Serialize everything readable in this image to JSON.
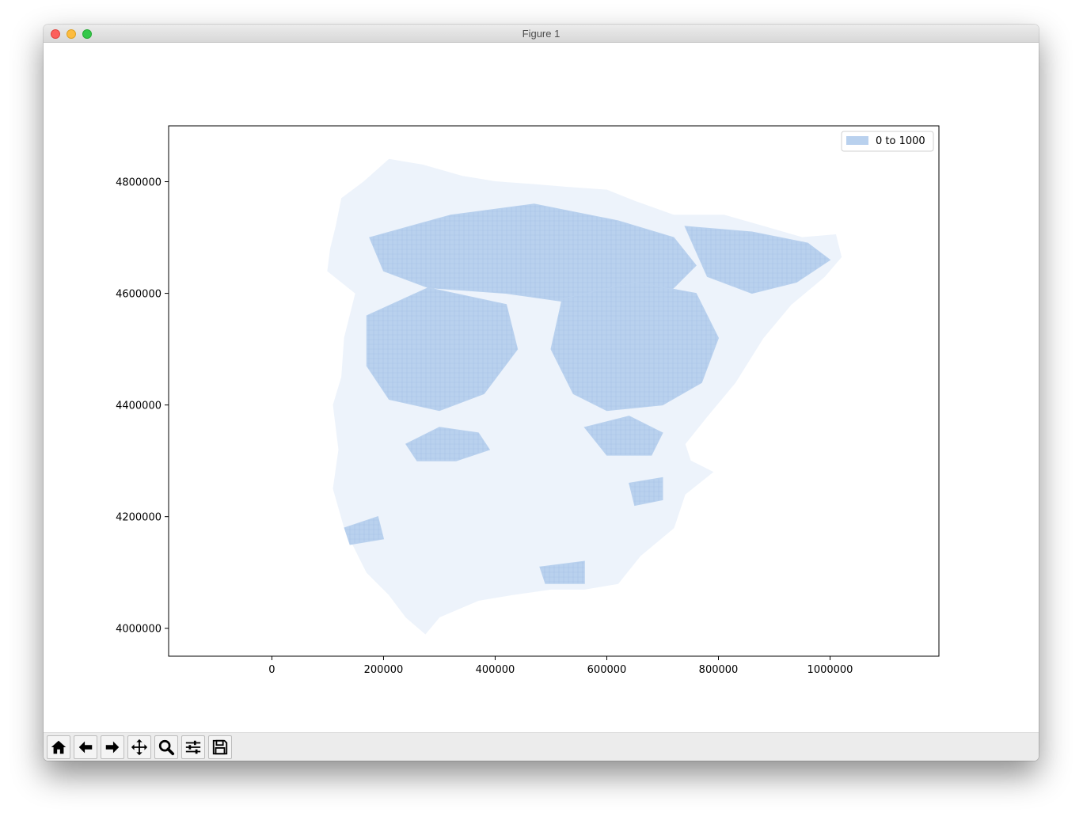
{
  "window": {
    "title": "Figure 1"
  },
  "toolbar": {
    "buttons": [
      {
        "name": "home-icon",
        "tooltip": "Home"
      },
      {
        "name": "back-arrow-icon",
        "tooltip": "Back"
      },
      {
        "name": "forward-arrow-icon",
        "tooltip": "Forward"
      },
      {
        "name": "pan-icon",
        "tooltip": "Pan"
      },
      {
        "name": "zoom-icon",
        "tooltip": "Zoom"
      },
      {
        "name": "configure-subplots-icon",
        "tooltip": "Subplots"
      },
      {
        "name": "save-icon",
        "tooltip": "Save"
      }
    ]
  },
  "chart_data": {
    "type": "map",
    "title": "",
    "xlabel": "",
    "ylabel": "",
    "xlim": [
      -185000,
      1195000
    ],
    "ylim": [
      3950000,
      4900000
    ],
    "xticks": [
      0,
      200000,
      400000,
      600000,
      800000,
      1000000
    ],
    "xtick_labels": [
      "0",
      "200000",
      "400000",
      "600000",
      "800000",
      "1000000"
    ],
    "yticks": [
      4000000,
      4200000,
      4400000,
      4600000,
      4800000
    ],
    "ytick_labels": [
      "4000000",
      "4200000",
      "4400000",
      "4600000",
      "4800000"
    ],
    "grid": false,
    "legend": {
      "placement": "upper right",
      "entries": [
        {
          "label": "0 to 1000",
          "color": "#b9d1ee"
        }
      ]
    },
    "colors": {
      "background_region": "#edf3fb",
      "highlighted_region": "#b9d1ee"
    },
    "outline": [
      [
        115000,
        4720000
      ],
      [
        125000,
        4770000
      ],
      [
        165000,
        4800000
      ],
      [
        210000,
        4840000
      ],
      [
        270000,
        4830000
      ],
      [
        340000,
        4810000
      ],
      [
        400000,
        4800000
      ],
      [
        470000,
        4795000
      ],
      [
        530000,
        4790000
      ],
      [
        600000,
        4785000
      ],
      [
        650000,
        4765000
      ],
      [
        720000,
        4740000
      ],
      [
        810000,
        4740000
      ],
      [
        880000,
        4720000
      ],
      [
        950000,
        4700000
      ],
      [
        1010000,
        4705000
      ],
      [
        1020000,
        4665000
      ],
      [
        990000,
        4630000
      ],
      [
        930000,
        4580000
      ],
      [
        880000,
        4520000
      ],
      [
        830000,
        4440000
      ],
      [
        780000,
        4380000
      ],
      [
        740000,
        4330000
      ],
      [
        750000,
        4300000
      ],
      [
        790000,
        4280000
      ],
      [
        740000,
        4240000
      ],
      [
        720000,
        4180000
      ],
      [
        660000,
        4130000
      ],
      [
        620000,
        4080000
      ],
      [
        560000,
        4070000
      ],
      [
        500000,
        4070000
      ],
      [
        430000,
        4060000
      ],
      [
        370000,
        4050000
      ],
      [
        300000,
        4020000
      ],
      [
        275000,
        3990000
      ],
      [
        240000,
        4020000
      ],
      [
        210000,
        4060000
      ],
      [
        170000,
        4100000
      ],
      [
        150000,
        4140000
      ],
      [
        130000,
        4180000
      ],
      [
        110000,
        4250000
      ],
      [
        120000,
        4320000
      ],
      [
        110000,
        4400000
      ],
      [
        125000,
        4450000
      ],
      [
        130000,
        4520000
      ],
      [
        150000,
        4600000
      ],
      [
        100000,
        4640000
      ],
      [
        105000,
        4680000
      ]
    ],
    "highlight_regions": [
      [
        [
          175000,
          4700000
        ],
        [
          320000,
          4740000
        ],
        [
          470000,
          4760000
        ],
        [
          620000,
          4730000
        ],
        [
          720000,
          4700000
        ],
        [
          760000,
          4650000
        ],
        [
          700000,
          4590000
        ],
        [
          560000,
          4580000
        ],
        [
          420000,
          4600000
        ],
        [
          280000,
          4610000
        ],
        [
          200000,
          4640000
        ]
      ],
      [
        [
          170000,
          4560000
        ],
        [
          280000,
          4610000
        ],
        [
          420000,
          4580000
        ],
        [
          440000,
          4500000
        ],
        [
          380000,
          4420000
        ],
        [
          300000,
          4390000
        ],
        [
          210000,
          4410000
        ],
        [
          170000,
          4470000
        ]
      ],
      [
        [
          520000,
          4590000
        ],
        [
          650000,
          4620000
        ],
        [
          760000,
          4600000
        ],
        [
          800000,
          4520000
        ],
        [
          770000,
          4440000
        ],
        [
          700000,
          4400000
        ],
        [
          600000,
          4390000
        ],
        [
          540000,
          4420000
        ],
        [
          500000,
          4500000
        ]
      ],
      [
        [
          740000,
          4720000
        ],
        [
          860000,
          4710000
        ],
        [
          960000,
          4690000
        ],
        [
          1000000,
          4660000
        ],
        [
          940000,
          4620000
        ],
        [
          860000,
          4600000
        ],
        [
          780000,
          4630000
        ]
      ],
      [
        [
          240000,
          4330000
        ],
        [
          300000,
          4360000
        ],
        [
          370000,
          4350000
        ],
        [
          390000,
          4320000
        ],
        [
          330000,
          4300000
        ],
        [
          260000,
          4300000
        ]
      ],
      [
        [
          560000,
          4360000
        ],
        [
          640000,
          4380000
        ],
        [
          700000,
          4350000
        ],
        [
          680000,
          4310000
        ],
        [
          600000,
          4310000
        ]
      ],
      [
        [
          640000,
          4260000
        ],
        [
          700000,
          4270000
        ],
        [
          700000,
          4230000
        ],
        [
          650000,
          4220000
        ]
      ],
      [
        [
          130000,
          4180000
        ],
        [
          190000,
          4200000
        ],
        [
          200000,
          4160000
        ],
        [
          140000,
          4150000
        ]
      ],
      [
        [
          480000,
          4110000
        ],
        [
          560000,
          4120000
        ],
        [
          560000,
          4080000
        ],
        [
          490000,
          4080000
        ]
      ]
    ]
  }
}
